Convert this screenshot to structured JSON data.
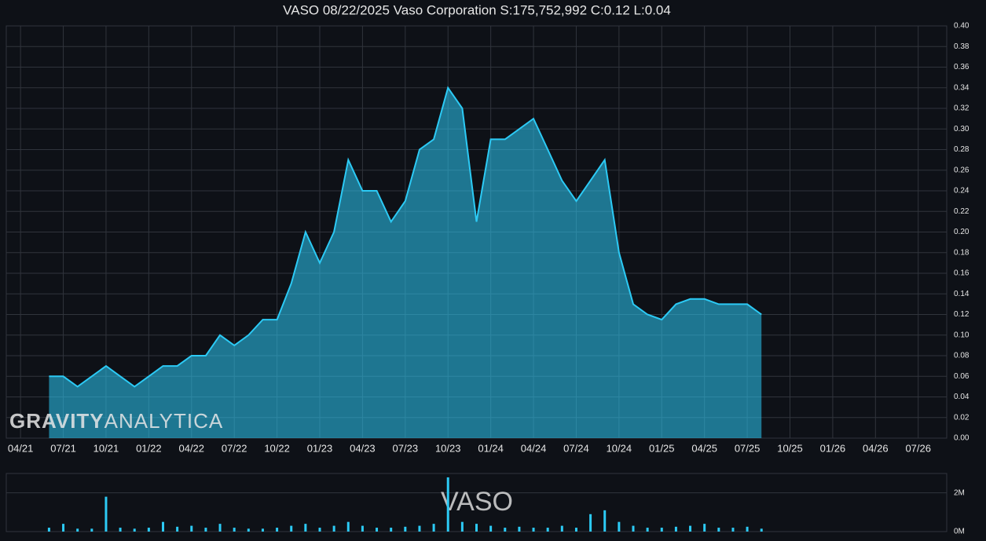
{
  "chart_data": [
    {
      "type": "area",
      "title": "VASO 08/22/2025 Vaso Corporation S:175,752,992 C:0.12 L:0.04",
      "branding": [
        "GRAVITY",
        "ANALYTICA"
      ],
      "color": "#2ccaf5",
      "x": [
        "06/21",
        "07/21",
        "08/21",
        "09/21",
        "10/21",
        "11/21",
        "12/21",
        "01/22",
        "02/22",
        "03/22",
        "04/22",
        "05/22",
        "06/22",
        "07/22",
        "08/22",
        "09/22",
        "10/22",
        "11/22",
        "12/22",
        "01/23",
        "02/23",
        "03/23",
        "04/23",
        "05/23",
        "06/23",
        "07/23",
        "08/23",
        "09/23",
        "10/23",
        "11/23",
        "12/23",
        "01/24",
        "02/24",
        "03/24",
        "04/24",
        "05/24",
        "06/24",
        "07/24",
        "08/24",
        "09/24",
        "10/24",
        "11/24",
        "12/24",
        "01/25",
        "02/25",
        "03/25",
        "04/25",
        "05/25",
        "06/25",
        "07/25",
        "08/25"
      ],
      "values": [
        0.06,
        0.06,
        0.05,
        0.06,
        0.07,
        0.06,
        0.05,
        0.06,
        0.07,
        0.07,
        0.08,
        0.08,
        0.1,
        0.09,
        0.1,
        0.115,
        0.115,
        0.15,
        0.2,
        0.17,
        0.2,
        0.27,
        0.24,
        0.24,
        0.21,
        0.23,
        0.28,
        0.29,
        0.34,
        0.32,
        0.21,
        0.29,
        0.29,
        0.3,
        0.31,
        0.28,
        0.25,
        0.23,
        0.25,
        0.27,
        0.18,
        0.13,
        0.12,
        0.115,
        0.13,
        0.135,
        0.135,
        0.13,
        0.13,
        0.13,
        0.12
      ],
      "xlim": [
        "03/21",
        "09/26"
      ],
      "xticks": [
        "04/21",
        "07/21",
        "10/21",
        "01/22",
        "04/22",
        "07/22",
        "10/22",
        "01/23",
        "04/23",
        "07/23",
        "10/23",
        "01/24",
        "04/24",
        "07/24",
        "10/24",
        "01/25",
        "04/25",
        "07/25",
        "10/25",
        "01/26",
        "04/26",
        "07/26"
      ],
      "ylim": [
        0,
        0.4
      ],
      "yticks": [
        {
          "value": 0,
          "label": "0.00"
        },
        {
          "value": 0.02,
          "label": "0.02"
        },
        {
          "value": 0.04,
          "label": "0.04"
        },
        {
          "value": 0.06,
          "label": "0.06"
        },
        {
          "value": 0.08,
          "label": "0.08"
        },
        {
          "value": 0.1,
          "label": "0.10"
        },
        {
          "value": 0.12,
          "label": "0.12"
        },
        {
          "value": 0.14,
          "label": "0.14"
        },
        {
          "value": 0.16,
          "label": "0.16"
        },
        {
          "value": 0.18,
          "label": "0.18"
        },
        {
          "value": 0.2,
          "label": "0.20"
        },
        {
          "value": 0.22,
          "label": "0.22"
        },
        {
          "value": 0.24,
          "label": "0.24"
        },
        {
          "value": 0.26,
          "label": "0.26"
        },
        {
          "value": 0.28,
          "label": "0.28"
        },
        {
          "value": 0.3,
          "label": "0.30"
        },
        {
          "value": 0.32,
          "label": "0.32"
        },
        {
          "value": 0.34,
          "label": "0.34"
        },
        {
          "value": 0.36,
          "label": "0.36"
        },
        {
          "value": 0.38,
          "label": "0.38"
        },
        {
          "value": 0.4,
          "label": "0.40"
        }
      ],
      "grid": true
    },
    {
      "type": "bar",
      "title": "VASO",
      "color": "#2ccaf5",
      "x": [
        "06/21",
        "07/21",
        "08/21",
        "09/21",
        "10/21",
        "11/21",
        "12/21",
        "01/22",
        "02/22",
        "03/22",
        "04/22",
        "05/22",
        "06/22",
        "07/22",
        "08/22",
        "09/22",
        "10/22",
        "11/22",
        "12/22",
        "01/23",
        "02/23",
        "03/23",
        "04/23",
        "05/23",
        "06/23",
        "07/23",
        "08/23",
        "09/23",
        "10/23",
        "11/23",
        "12/23",
        "01/24",
        "02/24",
        "03/24",
        "04/24",
        "05/24",
        "06/24",
        "07/24",
        "08/24",
        "09/24",
        "10/24",
        "11/24",
        "12/24",
        "01/25",
        "02/25",
        "03/25",
        "04/25",
        "05/25",
        "06/25",
        "07/25",
        "08/25"
      ],
      "values": [
        200000,
        400000,
        150000,
        150000,
        1800000,
        200000,
        150000,
        200000,
        500000,
        250000,
        300000,
        200000,
        400000,
        200000,
        150000,
        150000,
        200000,
        300000,
        400000,
        200000,
        300000,
        500000,
        300000,
        200000,
        200000,
        250000,
        300000,
        400000,
        2800000,
        500000,
        400000,
        300000,
        200000,
        250000,
        200000,
        200000,
        300000,
        200000,
        900000,
        1100000,
        500000,
        300000,
        200000,
        200000,
        250000,
        300000,
        400000,
        200000,
        200000,
        250000,
        150000
      ],
      "xlim": [
        "03/21",
        "09/26"
      ],
      "ylim": [
        0,
        3000000
      ],
      "yticks": [
        {
          "value": 0,
          "label": "0M"
        },
        {
          "value": 2000000,
          "label": "2M"
        }
      ],
      "grid": true
    }
  ]
}
